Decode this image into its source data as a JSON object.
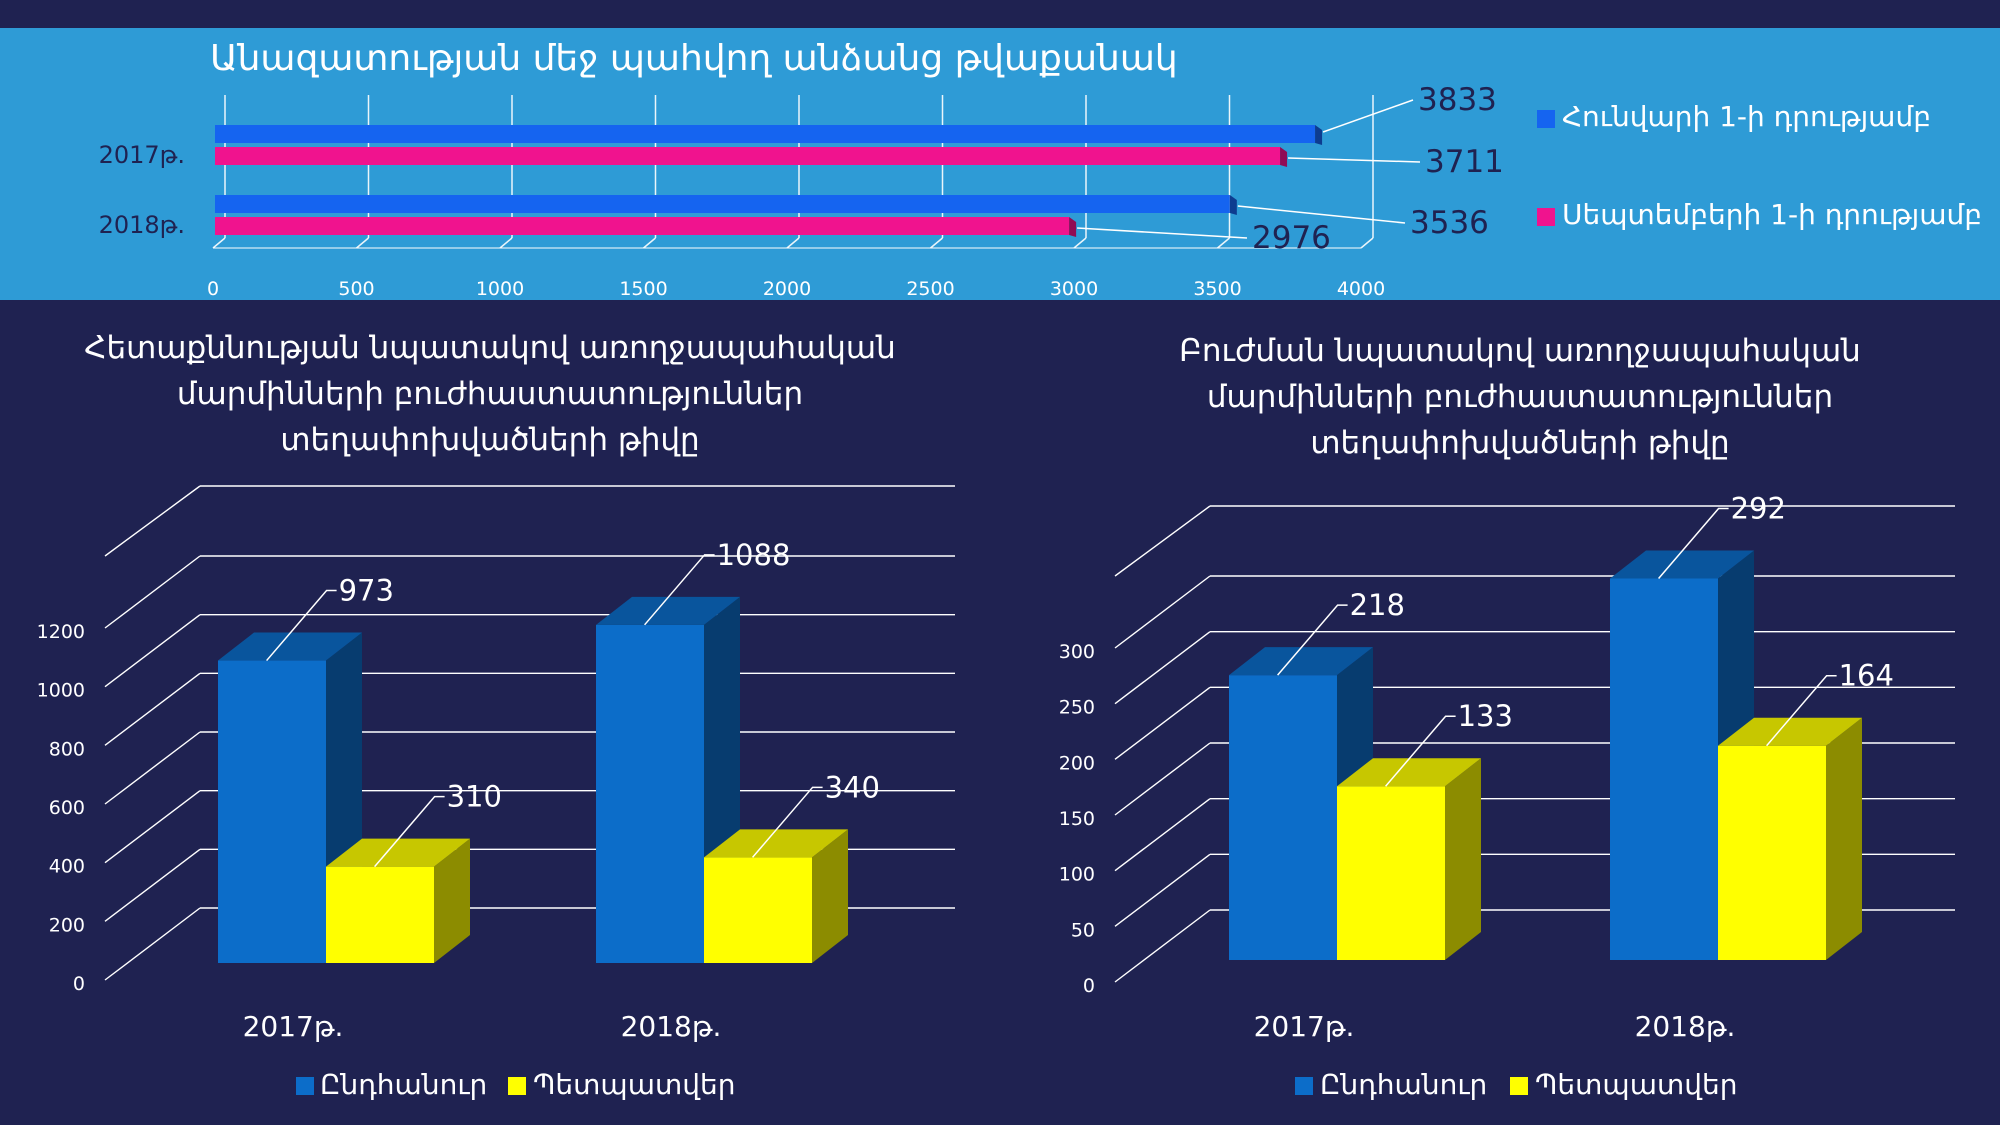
{
  "chart_data": [
    {
      "type": "bar",
      "orientation": "horizontal",
      "title": "Անազատության մեջ պահվող անձանց թվաքանակ",
      "categories": [
        "2017թ.",
        "2018թ."
      ],
      "series": [
        {
          "name": "Հունվարի 1-ի դրությամբ",
          "values": [
            3833,
            3536
          ]
        },
        {
          "name": "Սեպտեմբերի 1-ի դրությամբ",
          "values": [
            3711,
            2976
          ]
        }
      ],
      "xlim": [
        0,
        4000
      ],
      "xticks": [
        "0",
        "500",
        "1000",
        "1500",
        "2000",
        "2500",
        "3000",
        "3500",
        "4000"
      ],
      "legend": "right",
      "colors": [
        "#1564f0",
        "#f0138e"
      ]
    },
    {
      "type": "bar",
      "style": "3d-column",
      "title_lines": [
        "Հետաքննության նպատակով առողջապահական",
        "մարմինների բուժհաստատություններ",
        "տեղափոխվածների թիվը"
      ],
      "categories": [
        "2017թ.",
        "2018թ."
      ],
      "series": [
        {
          "name": "Ընդհանուր",
          "values": [
            973,
            1088
          ]
        },
        {
          "name": "Պետպատվեր",
          "values": [
            310,
            340
          ]
        }
      ],
      "ylim": [
        0,
        1200
      ],
      "yticks": [
        "0",
        "200",
        "400",
        "600",
        "800",
        "1000",
        "1200"
      ],
      "legend": "bottom",
      "colors": [
        "#0c6dc9",
        "#ffff00"
      ]
    },
    {
      "type": "bar",
      "style": "3d-column",
      "title_lines": [
        "Բուժման նպատակով առողջապահական",
        "մարմինների բուժհաստատություններ",
        "տեղափոխվածների թիվը"
      ],
      "categories": [
        "2017թ.",
        "2018թ."
      ],
      "series": [
        {
          "name": "Ընդհանուր",
          "values": [
            218,
            292
          ]
        },
        {
          "name": "Պետպատվեր",
          "values": [
            133,
            164
          ]
        }
      ],
      "ylim": [
        0,
        300
      ],
      "yticks": [
        "0",
        "50",
        "100",
        "150",
        "200",
        "250",
        "300"
      ],
      "legend": "bottom",
      "colors": [
        "#0c6dc9",
        "#ffff00"
      ]
    }
  ]
}
